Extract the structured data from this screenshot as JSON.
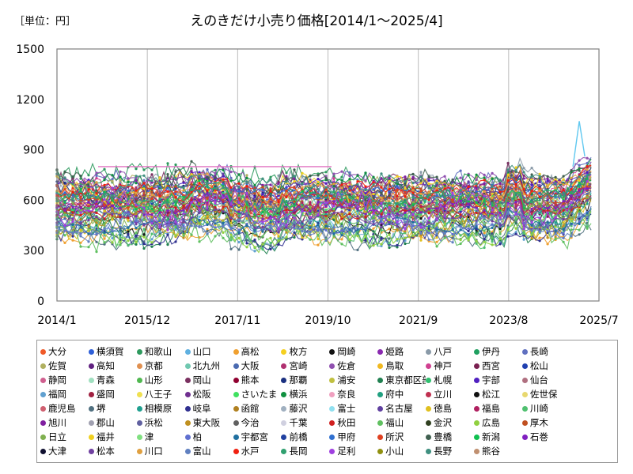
{
  "unit_label": "［単位：円］",
  "chart_data": {
    "type": "line",
    "title": "えのきだけ小売り価格[2014/1～2025/4]",
    "xlabel": "",
    "ylabel": "",
    "ylim": [
      0,
      1500
    ],
    "y_ticks": [
      0,
      300,
      600,
      900,
      1200,
      1500
    ],
    "x_ticks": [
      "2014/1",
      "2015/12",
      "2017/11",
      "2019/10",
      "2021/9",
      "2023/8",
      "2025/7"
    ],
    "grid": "vertical",
    "legend_position": "bottom",
    "series_names": [
      "大分",
      "横須賀",
      "和歌山",
      "山口",
      "高松",
      "枚方",
      "岡崎",
      "姫路",
      "八戸",
      "伊丹",
      "長崎",
      "佐賀",
      "高知",
      "京都",
      "北九州",
      "大阪",
      "宮崎",
      "佐倉",
      "鳥取",
      "神戸",
      "西宮",
      "松山",
      "静岡",
      "青森",
      "山形",
      "岡山",
      "熊本",
      "那覇",
      "浦安",
      "東京都区部",
      "札幌",
      "宇部",
      "仙台",
      "福岡",
      "盛岡",
      "八王子",
      "松阪",
      "さいたま",
      "横浜",
      "奈良",
      "府中",
      "立川",
      "松江",
      "佐世保",
      "鹿児島",
      "堺",
      "相模原",
      "岐阜",
      "函館",
      "藤沢",
      "富士",
      "名古屋",
      "徳島",
      "福島",
      "川崎",
      "旭川",
      "郡山",
      "浜松",
      "東大阪",
      "今治",
      "千葉",
      "秋田",
      "福山",
      "金沢",
      "広島",
      "厚木",
      "日立",
      "福井",
      "津",
      "柏",
      "宇都宮",
      "前橋",
      "甲府",
      "所沢",
      "豊橋",
      "新潟",
      "石巻",
      "大津",
      "松本",
      "川口",
      "富山",
      "水戸",
      "長岡",
      "足利",
      "小山",
      "長野",
      "熊谷"
    ],
    "series_colors": [
      "#f05a28",
      "#2e5fd8",
      "#2e9a5e",
      "#5fb0e0",
      "#f0a030",
      "#f5d020",
      "#111111",
      "#8a2ab0",
      "#8a9aa8",
      "#20a060",
      "#6070c0",
      "#b0b060",
      "#602080",
      "#e09050",
      "#70c8b0",
      "#4a6ab0",
      "#b03070",
      "#9050b0",
      "#f0b820",
      "#d04090",
      "#7a2050",
      "#2040b0",
      "#d06090",
      "#a0e0c0",
      "#50b850",
      "#7a3060",
      "#900030",
      "#1a3080",
      "#c0c040",
      "#208050",
      "#30c070",
      "#5020c0",
      "#b07080",
      "#60a0d0",
      "#a02040",
      "#f0e050",
      "#703090",
      "#40e060",
      "#109040",
      "#f0a0c0",
      "#20a080",
      "#c03050",
      "#101010",
      "#e8d870",
      "#d06070",
      "#507080",
      "#20a090",
      "#303090",
      "#b08020",
      "#a0b0c0",
      "#90e0f0",
      "#6040a0",
      "#e0c020",
      "#b02060",
      "#50c070",
      "#8020a0",
      "#a0a0b0",
      "#6060a0",
      "#c09020",
      "#606060",
      "#d0d0e0",
      "#d02020",
      "#60c060",
      "#304020",
      "#90d040",
      "#c05020",
      "#80b050",
      "#f0d020",
      "#80e080",
      "#6070d0",
      "#2070a0",
      "#2040a0",
      "#3070d0",
      "#e04020",
      "#406050",
      "#10c050",
      "#8020c0",
      "#101030",
      "#7040a0",
      "#e0a040",
      "#6080c0",
      "#f02010",
      "#30a070",
      "#a040e0",
      "#909010",
      "#409080",
      "#c09070"
    ],
    "line_colors": [
      "#f05a28",
      "#2e5fd8",
      "#2e9a5e",
      "#5fb0e0",
      "#f0a030",
      "#f5d020",
      "#111111",
      "#8a2ab0",
      "#8a9aa8",
      "#20a060",
      "#6070c0",
      "#b0b060",
      "#602080",
      "#e09050",
      "#70c8b0",
      "#4a6ab0",
      "#b03070",
      "#9050b0",
      "#d04090",
      "#7a2050",
      "#2040b0",
      "#50b850",
      "#7a3060",
      "#1a3080",
      "#208050",
      "#30c070",
      "#5020c0",
      "#60a0d0",
      "#40e060",
      "#109040",
      "#c03050",
      "#507080",
      "#20a090",
      "#303090",
      "#b08020",
      "#6040a0",
      "#e0c020",
      "#b02060",
      "#50c070",
      "#8020a0",
      "#6060a0",
      "#c09020",
      "#d02020",
      "#60c060",
      "#90d040",
      "#c05020",
      "#80b050",
      "#f0d020",
      "#6070d0",
      "#2070a0",
      "#3070d0",
      "#e04020",
      "#406050",
      "#10c050",
      "#8020c0",
      "#7040a0",
      "#e0a040",
      "#6080c0",
      "#f02010",
      "#30a070",
      "#a040e0",
      "#409080"
    ],
    "y_min_typical": 300,
    "y_max_typical": 800,
    "y_peak": 1070
  }
}
